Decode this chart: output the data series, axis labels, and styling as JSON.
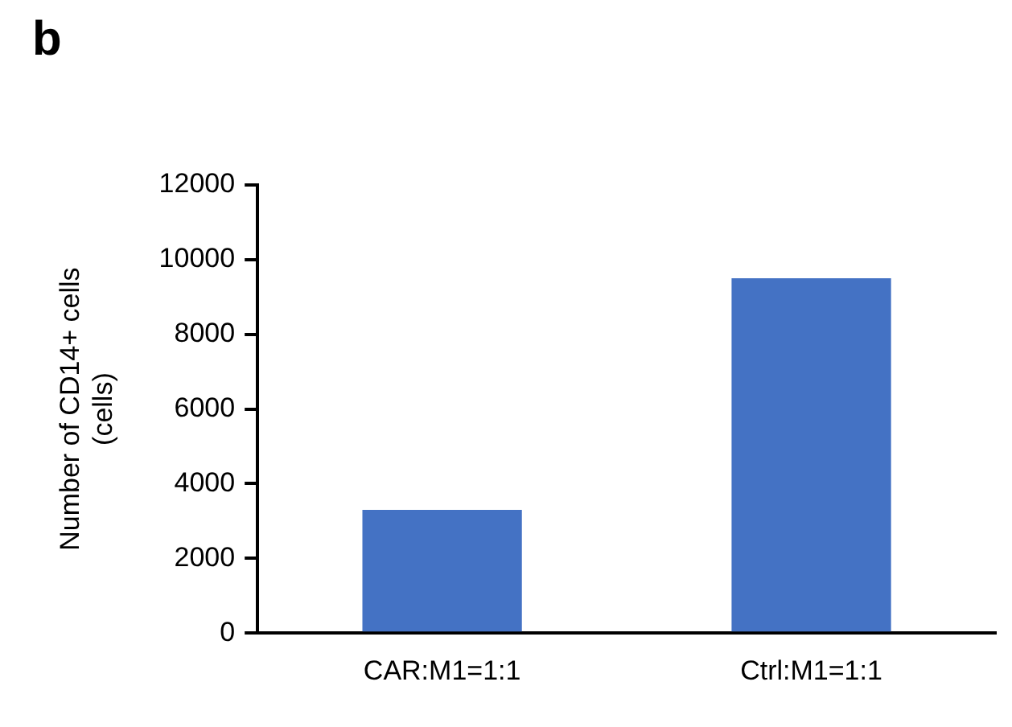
{
  "chart_data": {
    "type": "bar",
    "title": "b",
    "ylabel": "Number of CD14+ cells\n(cells)",
    "categories": [
      "CAR:M1=1:1",
      "Ctrl:M1=1:1"
    ],
    "values": [
      3300,
      9500
    ],
    "color": "#4472c4",
    "ylim": [
      0,
      12000
    ],
    "yticks": [
      0,
      2000,
      4000,
      6000,
      8000,
      10000,
      12000
    ],
    "grid": false
  }
}
